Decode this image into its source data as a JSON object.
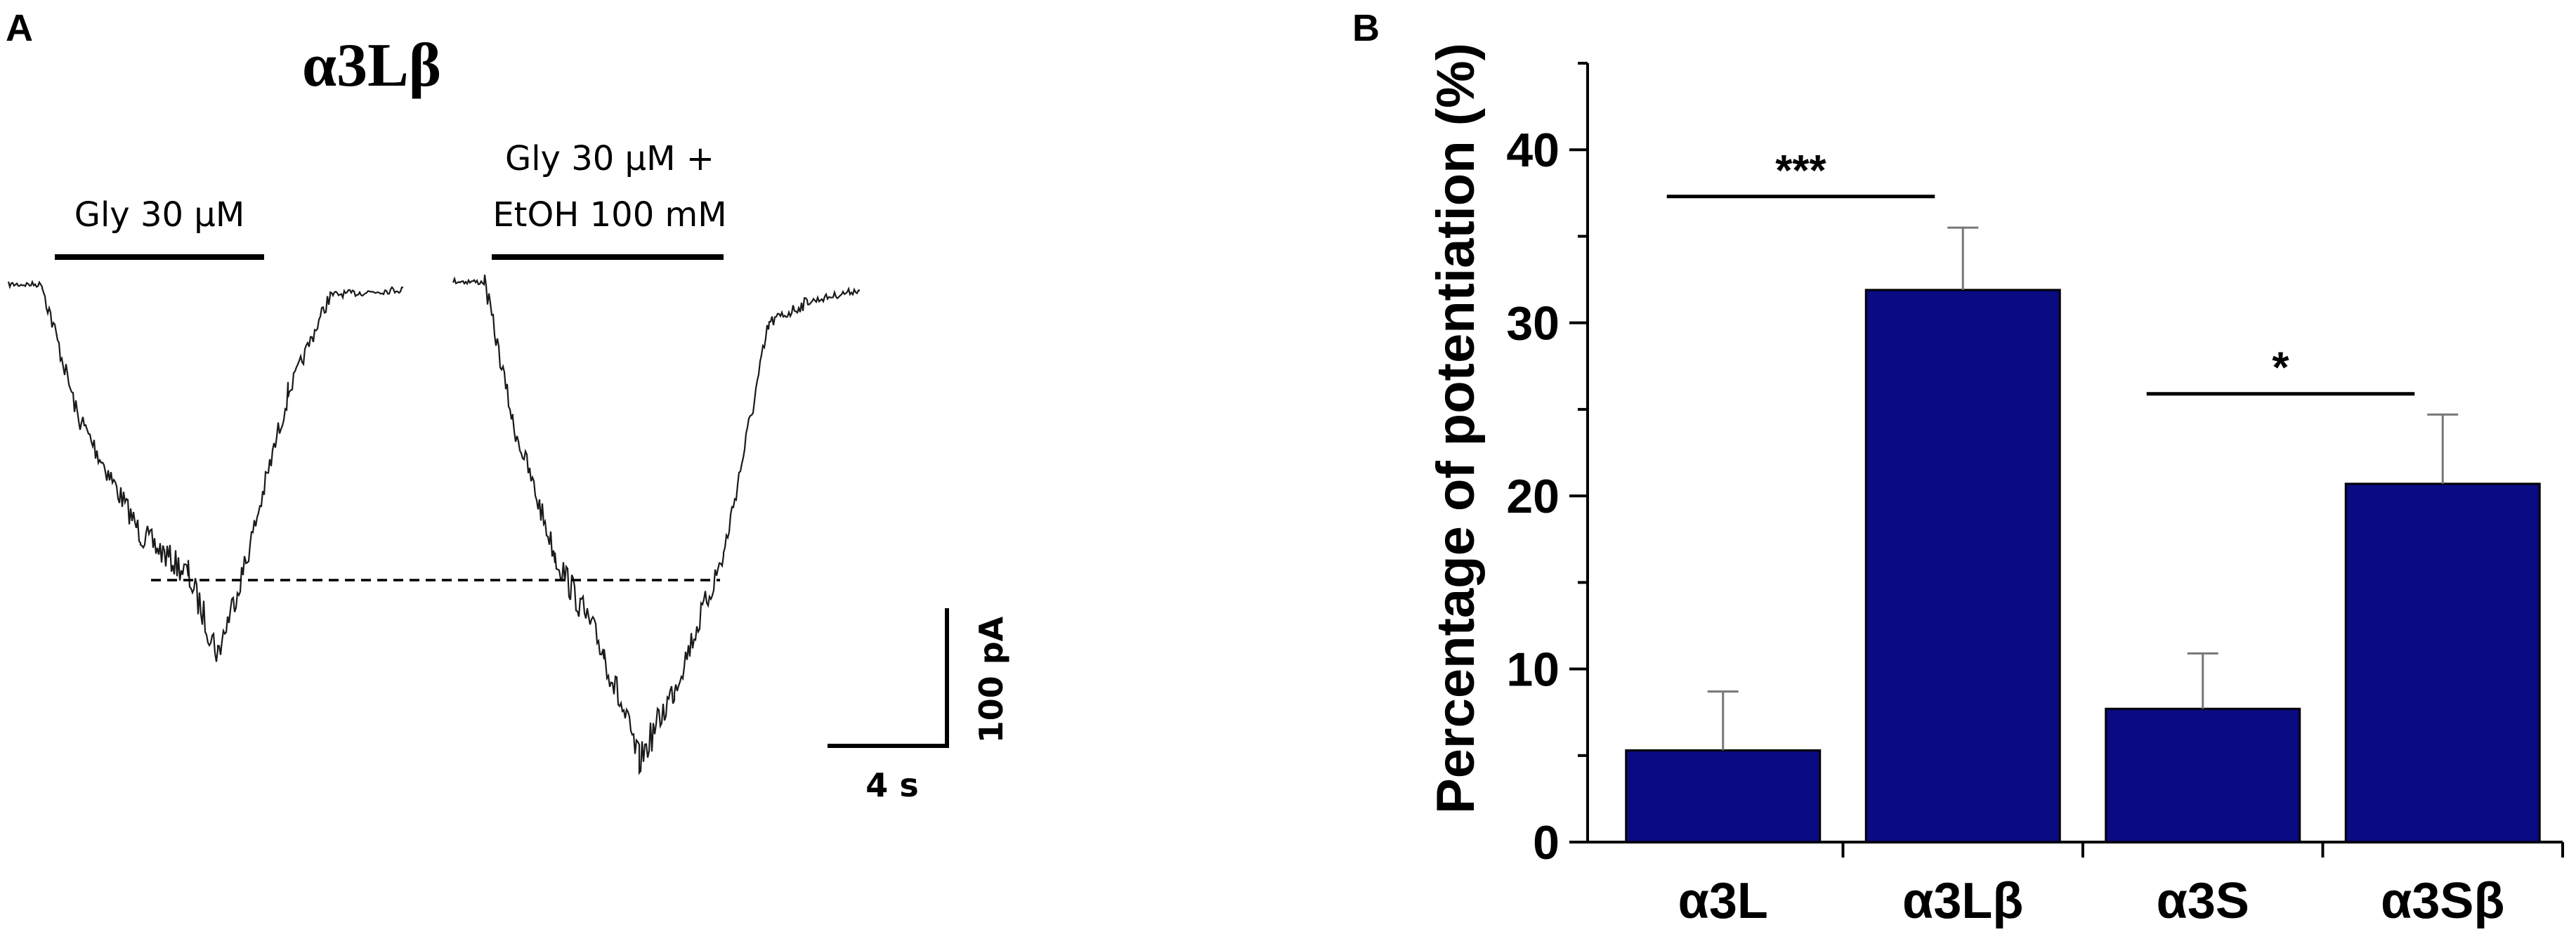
{
  "panel_a": {
    "label": "A",
    "title": "α3Lβ",
    "trace_labels": {
      "gly": "Gly 30 μM",
      "gly_etoh_line1": "Gly 30 μM +",
      "gly_etoh_line2": "EtOH 100 mM"
    },
    "scale_bar": {
      "current_label": "100 pA",
      "time_label": "4 s"
    }
  },
  "chart_data": {
    "type": "bar",
    "panel_label": "B",
    "categories": [
      "α3L",
      "α3Lβ",
      "α3S",
      "α3Sβ"
    ],
    "values": [
      5.3,
      31.9,
      7.7,
      20.7
    ],
    "errors": [
      3.4,
      3.6,
      3.2,
      4.0
    ],
    "ylabel": "Percentage of potentiation (%)",
    "ylim": [
      0,
      45
    ],
    "yticks": [
      0,
      10,
      20,
      30,
      40
    ],
    "bar_color": "#0a0a82",
    "significance": [
      {
        "from": 0,
        "to": 1,
        "label": "***",
        "y": 37.3
      },
      {
        "from": 2,
        "to": 3,
        "label": "*",
        "y": 25.9
      }
    ]
  }
}
